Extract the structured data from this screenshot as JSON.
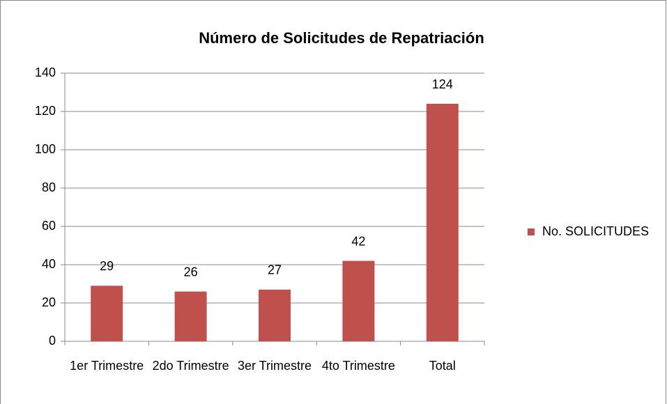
{
  "chart_data": {
    "type": "bar",
    "title": "Número de  Solicitudes de Repatriación",
    "categories": [
      "1er Trimestre",
      "2do Trimestre",
      "3er Trimestre",
      "4to Trimestre",
      "Total"
    ],
    "series": [
      {
        "name": "No. SOLICITUDES",
        "color": "#c0504d",
        "values": [
          29,
          26,
          27,
          42,
          124
        ]
      }
    ],
    "ylim": [
      0,
      140
    ],
    "yticks": [
      0,
      20,
      40,
      60,
      80,
      100,
      120,
      140
    ],
    "grid": true,
    "legend": "right",
    "data_labels": true
  }
}
